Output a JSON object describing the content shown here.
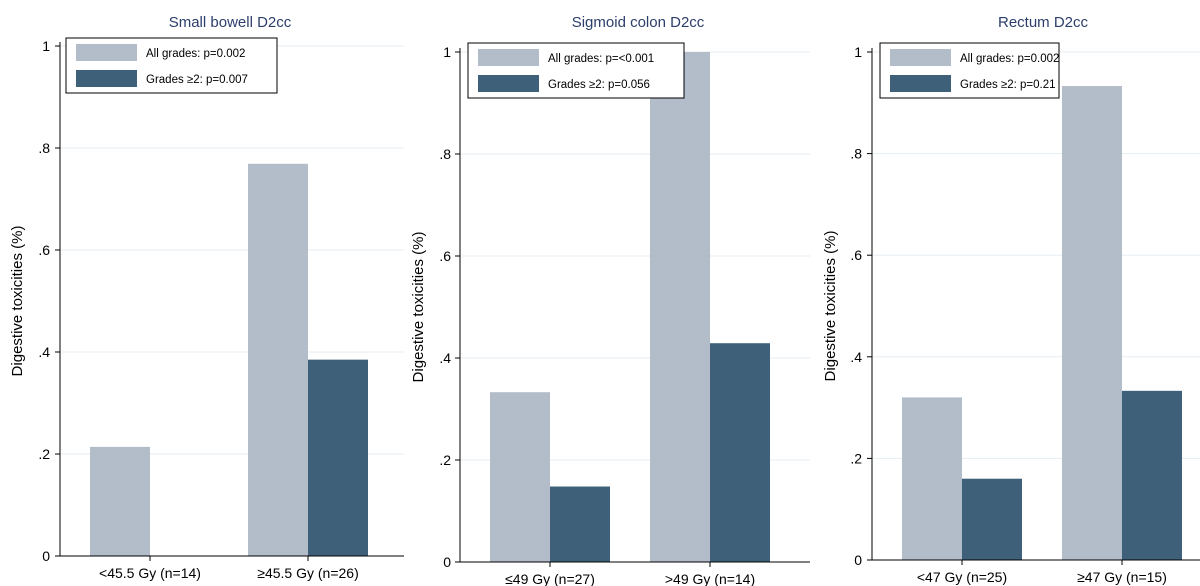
{
  "colors": {
    "all_grades": "#b3bdc9",
    "grades_ge2": "#3f6079",
    "title": "#2c3e6b",
    "axis": "#000000",
    "grid": "#e6eef2"
  },
  "chart_data": [
    {
      "type": "bar",
      "title": "Small bowell D2cc",
      "ylabel": "Digestive toxicities (%)",
      "xlabel": "",
      "ylim": [
        0,
        1
      ],
      "yticks": [
        0,
        0.2,
        0.4,
        0.6,
        0.8,
        1
      ],
      "ytick_labels": [
        "0",
        ".2",
        ".4",
        ".6",
        ".8",
        "1"
      ],
      "grid": true,
      "legend_position": "top-left",
      "categories": [
        "<45.5 Gy (n=14)",
        "≥45.5 Gy (n=26)"
      ],
      "series": [
        {
          "name": "All grades: p=0.002",
          "values": [
            0.214,
            0.769
          ]
        },
        {
          "name": "Grades ≥2: p=0.007",
          "values": [
            0,
            0.385
          ]
        }
      ]
    },
    {
      "type": "bar",
      "title": "Sigmoid colon D2cc",
      "ylabel": "Digestive toxicities (%)",
      "xlabel": "",
      "ylim": [
        0,
        1
      ],
      "yticks": [
        0,
        0.2,
        0.4,
        0.6,
        0.8,
        1
      ],
      "ytick_labels": [
        "0",
        ".2",
        ".4",
        ".6",
        ".8",
        "1"
      ],
      "grid": true,
      "legend_position": "top-left",
      "categories": [
        "≤49 Gy (n=27)",
        ">49 Gy (n=14)"
      ],
      "series": [
        {
          "name": "All grades: p=<0.001",
          "values": [
            0.333,
            1.0
          ]
        },
        {
          "name": "Grades ≥2: p=0.056",
          "values": [
            0.148,
            0.429
          ]
        }
      ]
    },
    {
      "type": "bar",
      "title": "Rectum D2cc",
      "ylabel": "Digestive toxicities (%)",
      "xlabel": "",
      "ylim": [
        0,
        1
      ],
      "yticks": [
        0,
        0.2,
        0.4,
        0.6,
        0.8,
        1
      ],
      "ytick_labels": [
        "0",
        ".2",
        ".4",
        ".6",
        ".8",
        "1"
      ],
      "grid": true,
      "legend_position": "top-left",
      "categories": [
        "<47 Gy (n=25)",
        "≥47 Gy (n=15)"
      ],
      "series": [
        {
          "name": "All grades: p=0.002",
          "values": [
            0.32,
            0.933
          ]
        },
        {
          "name": "Grades ≥2: p=0.21",
          "values": [
            0.16,
            0.333
          ]
        }
      ]
    }
  ]
}
